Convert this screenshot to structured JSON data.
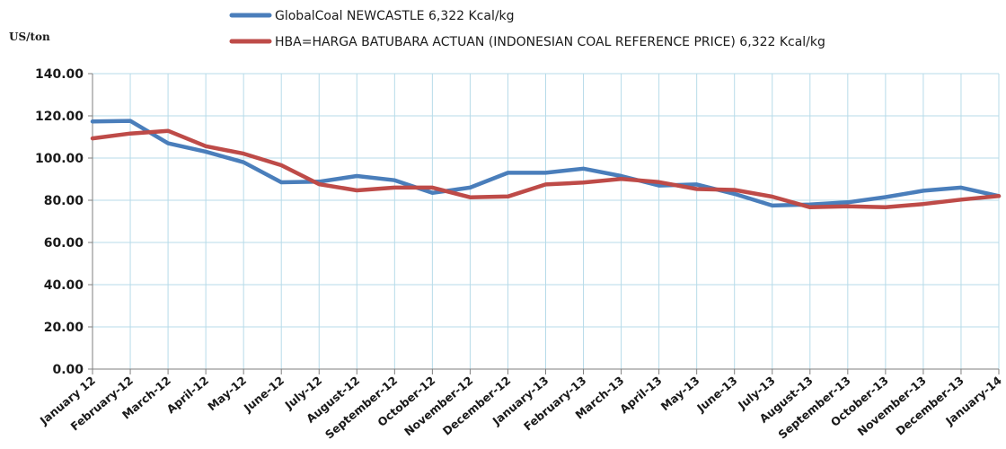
{
  "chart_data": {
    "type": "line",
    "ylabel": "US/ton",
    "xlabel": "",
    "ylim": [
      0,
      140
    ],
    "y_ticks": [
      0,
      20,
      40,
      60,
      80,
      100,
      120,
      140
    ],
    "y_tick_labels": [
      "0.00",
      "20.00",
      "40.00",
      "60.00",
      "80.00",
      "100.00",
      "120.00",
      "140.00"
    ],
    "grid": true,
    "legend_position": "top-center",
    "categories": [
      "January 12",
      "February-12",
      "March-12",
      "April-12",
      "May-12",
      "June-12",
      "July-12",
      "August-12",
      "September-12",
      "October-12",
      "November-12",
      "December-12",
      "January-13",
      "February-13",
      "March-13",
      "April-13",
      "May-13",
      "June-13",
      "July-13",
      "August-13",
      "September-13",
      "October-13",
      "November-13",
      "December-13",
      "January-14"
    ],
    "series": [
      {
        "name": "GlobalCoal NEWCASTLE 6,322 Kcal/kg",
        "color": "#4a7ebb",
        "values": [
          117.3,
          117.6,
          107.0,
          103.0,
          98.0,
          88.5,
          88.8,
          91.5,
          89.5,
          83.5,
          86.0,
          93.0,
          93.0,
          95.0,
          91.5,
          87.0,
          87.5,
          83.0,
          77.5,
          78.0,
          79.0,
          81.5,
          84.5,
          86.0,
          82.0
        ]
      },
      {
        "name": "HBA=HARGA BATUBARA ACTUAN (INDONESIAN COAL REFERENCE PRICE) 6,322 Kcal/kg",
        "color": "#be4b48",
        "values": [
          109.3,
          111.6,
          112.9,
          105.6,
          102.1,
          96.6,
          87.6,
          84.7,
          86.0,
          86.0,
          81.4,
          81.8,
          87.5,
          88.4,
          90.1,
          88.6,
          85.3,
          84.9,
          81.7,
          76.7,
          77.1,
          76.7,
          78.2,
          80.3,
          82.0
        ]
      }
    ]
  }
}
